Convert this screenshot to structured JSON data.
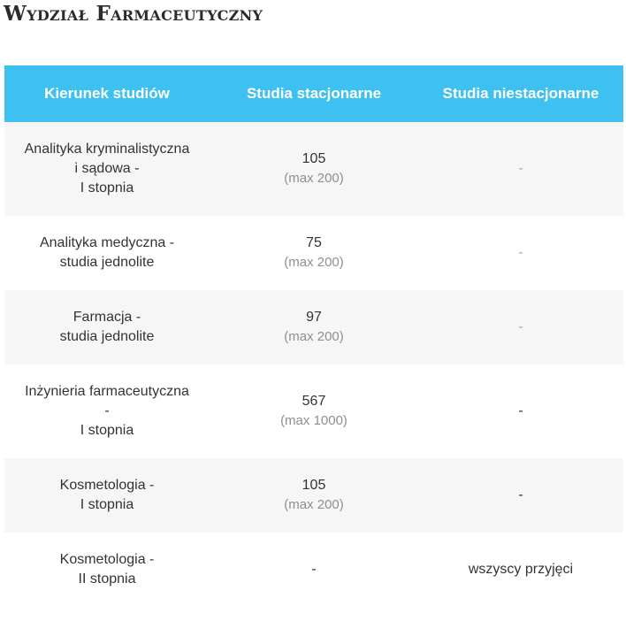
{
  "page_title": "Wydział Farmaceutyczny",
  "table": {
    "headers": [
      "Kierunek studiów",
      "Studia stacjonarne",
      "Studia niestacjonarne"
    ],
    "rows": [
      {
        "name_lines": [
          "Analityka kryminalistyczna",
          "i sądowa -",
          "I stopnia"
        ],
        "stacjonarne": {
          "count": "105",
          "max": "(max 200)"
        },
        "niestacjonarne": "-"
      },
      {
        "name_lines": [
          "Analityka medyczna -",
          "studia jednolite"
        ],
        "stacjonarne": {
          "count": "75",
          "max": "(max 200)"
        },
        "niestacjonarne": "-"
      },
      {
        "name_lines": [
          "Farmacja -",
          "studia jednolite"
        ],
        "stacjonarne": {
          "count": "97",
          "max": "(max 200)"
        },
        "niestacjonarne": "-"
      },
      {
        "name_lines": [
          "Inżynieria farmaceutyczna",
          "-",
          "I stopnia"
        ],
        "stacjonarne": {
          "count": "567",
          "max": "(max 1000)"
        },
        "niestacjonarne": "-"
      },
      {
        "name_lines": [
          "Kosmetologia -",
          "I stopnia"
        ],
        "stacjonarne": {
          "count": "105",
          "max": "(max 200)"
        },
        "niestacjonarne": "-"
      },
      {
        "name_lines": [
          "Kosmetologia -",
          "II stopnia"
        ],
        "stacjonarne": "-",
        "niestacjonarne": "wszyscy przyjęci"
      }
    ]
  }
}
